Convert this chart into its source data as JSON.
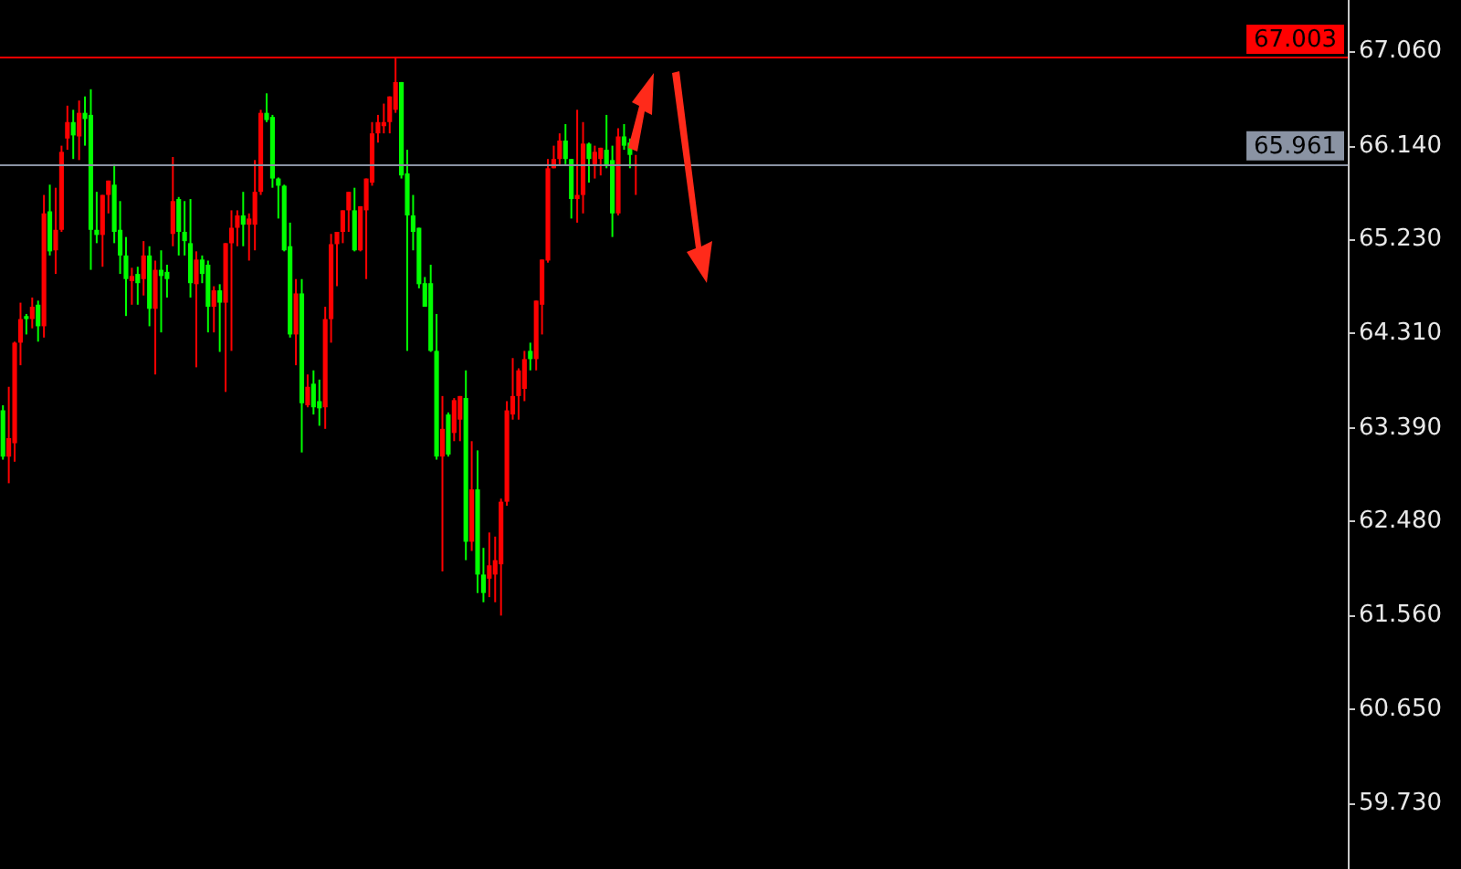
{
  "chart_data": {
    "type": "candlestick",
    "categories": [
      null,
      null,
      null,
      null,
      null,
      null,
      null,
      null,
      null,
      null,
      null,
      null,
      null,
      null,
      null,
      null,
      null,
      null,
      null,
      null,
      null,
      null,
      null,
      null,
      null,
      null,
      null,
      null,
      null,
      null,
      null,
      null,
      null,
      null,
      null,
      null,
      null,
      null,
      null,
      null,
      null,
      null,
      null,
      null,
      null,
      null,
      null,
      null,
      null,
      null,
      null,
      null,
      null,
      null,
      null,
      null,
      null,
      null,
      null,
      null,
      null,
      null,
      null,
      null,
      null,
      null,
      null,
      null,
      null,
      null,
      null,
      null,
      null,
      null,
      null,
      null,
      null,
      null,
      null,
      null,
      null,
      null,
      null,
      null,
      null,
      null,
      null,
      null,
      null,
      null,
      null,
      null,
      null,
      null,
      null,
      null,
      null,
      null,
      null,
      null,
      null,
      null,
      null,
      null,
      null,
      null,
      null,
      null,
      null,
      null,
      null,
      null,
      null,
      null,
      null,
      null,
      null,
      null,
      null,
      null,
      null,
      null,
      null,
      null,
      null,
      null,
      null,
      null,
      null,
      null,
      null,
      null,
      null,
      null,
      null,
      null,
      null,
      null,
      null,
      null,
      null,
      null,
      null,
      null,
      null,
      null,
      null,
      null,
      null,
      null,
      null,
      null,
      null,
      null,
      null,
      null,
      null,
      null,
      null,
      null,
      null,
      null,
      null,
      null,
      null,
      null,
      null,
      null,
      null,
      null,
      null,
      null,
      null,
      null,
      null,
      null,
      null,
      null,
      null,
      null,
      null,
      null,
      null,
      null,
      null,
      null,
      null,
      null,
      null,
      null,
      null,
      null,
      null,
      null,
      null,
      null,
      null,
      null,
      null,
      null,
      null,
      null,
      null,
      null,
      null,
      null,
      null,
      null,
      null,
      null,
      null,
      null,
      null,
      null,
      null,
      null,
      null,
      null,
      null,
      null,
      null,
      null,
      null,
      null,
      null,
      null,
      null,
      null,
      null,
      null
    ],
    "ohlc": [
      [
        63.56,
        63.61,
        63.08,
        63.11
      ],
      [
        63.11,
        63.79,
        62.85,
        63.29
      ],
      [
        63.24,
        64.23,
        63.06,
        64.22
      ],
      [
        64.22,
        64.61,
        64.0,
        64.45
      ],
      [
        64.48,
        64.5,
        64.3,
        64.45
      ],
      [
        64.45,
        64.66,
        64.36,
        64.57
      ],
      [
        64.59,
        64.63,
        64.23,
        64.38
      ],
      [
        64.38,
        65.66,
        64.27,
        65.48
      ],
      [
        65.5,
        65.76,
        65.07,
        65.11
      ],
      [
        65.12,
        65.73,
        64.89,
        65.32
      ],
      [
        65.32,
        66.14,
        65.3,
        66.08
      ],
      [
        66.21,
        66.53,
        66.1,
        66.37
      ],
      [
        66.37,
        66.49,
        66.01,
        66.24
      ],
      [
        66.23,
        66.58,
        66.0,
        66.46
      ],
      [
        66.46,
        66.62,
        66.14,
        66.4
      ],
      [
        66.44,
        66.69,
        64.93,
        65.32
      ],
      [
        65.32,
        65.69,
        65.19,
        65.27
      ],
      [
        65.27,
        65.66,
        64.96,
        65.66
      ],
      [
        65.66,
        65.8,
        65.48,
        65.8
      ],
      [
        65.76,
        65.96,
        65.19,
        65.3
      ],
      [
        65.32,
        65.6,
        64.89,
        65.07
      ],
      [
        65.07,
        65.25,
        64.48,
        64.84
      ],
      [
        64.82,
        64.95,
        64.59,
        64.87
      ],
      [
        64.89,
        64.96,
        64.59,
        64.8
      ],
      [
        64.84,
        65.21,
        64.68,
        65.07
      ],
      [
        65.07,
        65.16,
        64.38,
        64.55
      ],
      [
        64.55,
        65.02,
        63.91,
        64.93
      ],
      [
        64.93,
        65.12,
        64.32,
        64.87
      ],
      [
        64.91,
        64.98,
        64.66,
        64.84
      ],
      [
        65.28,
        66.03,
        65.16,
        65.6
      ],
      [
        65.62,
        65.64,
        65.07,
        65.3
      ],
      [
        65.3,
        65.6,
        65.07,
        65.21
      ],
      [
        65.19,
        65.62,
        64.66,
        64.8
      ],
      [
        64.79,
        65.11,
        63.98,
        65.03
      ],
      [
        65.03,
        65.07,
        64.8,
        64.89
      ],
      [
        64.98,
        65.02,
        64.32,
        64.57
      ],
      [
        64.57,
        64.77,
        64.32,
        64.73
      ],
      [
        64.73,
        64.79,
        64.13,
        64.61
      ],
      [
        64.61,
        65.19,
        63.74,
        65.19
      ],
      [
        65.19,
        65.51,
        64.14,
        65.34
      ],
      [
        65.34,
        65.51,
        65.16,
        65.46
      ],
      [
        65.46,
        65.69,
        65.16,
        65.37
      ],
      [
        65.37,
        65.48,
        65.02,
        65.43
      ],
      [
        65.37,
        66.0,
        65.12,
        65.69
      ],
      [
        65.69,
        66.49,
        65.66,
        66.46
      ],
      [
        66.46,
        66.65,
        66.37,
        66.39
      ],
      [
        66.42,
        66.44,
        65.73,
        65.82
      ],
      [
        65.82,
        65.83,
        65.43,
        65.75
      ],
      [
        65.75,
        65.76,
        65.11,
        65.12
      ],
      [
        65.16,
        65.39,
        64.27,
        64.3
      ],
      [
        64.3,
        64.84,
        64.0,
        64.7
      ],
      [
        64.7,
        64.84,
        63.15,
        63.63
      ],
      [
        63.61,
        63.91,
        63.59,
        63.79
      ],
      [
        63.82,
        63.95,
        63.52,
        63.59
      ],
      [
        63.65,
        63.86,
        63.41,
        63.58
      ],
      [
        63.59,
        64.57,
        63.38,
        64.45
      ],
      [
        64.45,
        65.28,
        64.22,
        65.18
      ],
      [
        65.18,
        65.3,
        64.77,
        65.3
      ],
      [
        65.3,
        65.51,
        65.19,
        65.51
      ],
      [
        65.51,
        65.69,
        65.3,
        65.69
      ],
      [
        65.51,
        65.73,
        65.11,
        65.12
      ],
      [
        65.12,
        65.55,
        65.11,
        65.55
      ],
      [
        65.51,
        65.82,
        64.84,
        65.82
      ],
      [
        65.78,
        66.37,
        65.75,
        66.26
      ],
      [
        66.26,
        66.44,
        66.17,
        66.37
      ],
      [
        66.33,
        66.55,
        66.26,
        66.37
      ],
      [
        66.37,
        66.62,
        66.26,
        66.62
      ],
      [
        66.49,
        67.0,
        66.46,
        66.76
      ],
      [
        66.76,
        66.76,
        65.82,
        65.85
      ],
      [
        65.87,
        66.1,
        64.14,
        65.46
      ],
      [
        65.46,
        65.66,
        65.12,
        65.3
      ],
      [
        65.34,
        65.34,
        64.75,
        64.79
      ],
      [
        64.8,
        64.86,
        64.57,
        64.57
      ],
      [
        64.8,
        64.98,
        64.13,
        64.14
      ],
      [
        64.14,
        64.5,
        63.08,
        63.11
      ],
      [
        63.11,
        63.7,
        61.99,
        63.38
      ],
      [
        63.52,
        63.54,
        63.11,
        63.13
      ],
      [
        63.34,
        63.68,
        63.26,
        63.66
      ],
      [
        63.47,
        63.7,
        63.26,
        63.7
      ],
      [
        63.68,
        63.95,
        62.1,
        62.28
      ],
      [
        62.28,
        63.26,
        62.19,
        62.79
      ],
      [
        62.79,
        63.17,
        61.78,
        61.96
      ],
      [
        61.96,
        62.22,
        61.69,
        61.78
      ],
      [
        61.92,
        62.37,
        61.74,
        62.05
      ],
      [
        61.96,
        62.33,
        61.69,
        62.1
      ],
      [
        62.06,
        62.7,
        61.56,
        62.67
      ],
      [
        62.67,
        63.65,
        62.63,
        63.56
      ],
      [
        63.52,
        64.07,
        63.47,
        63.7
      ],
      [
        63.7,
        63.97,
        63.47,
        63.95
      ],
      [
        63.77,
        64.14,
        63.65,
        64.06
      ],
      [
        64.14,
        64.22,
        63.95,
        64.06
      ],
      [
        64.06,
        64.63,
        63.95,
        64.63
      ],
      [
        64.59,
        65.03,
        64.3,
        65.03
      ],
      [
        65.02,
        66.01,
        65.0,
        65.92
      ],
      [
        65.92,
        66.14,
        65.92,
        66.01
      ],
      [
        66.01,
        66.26,
        65.96,
        66.19
      ],
      [
        66.19,
        66.35,
        65.96,
        66.01
      ],
      [
        66.01,
        66.01,
        65.43,
        65.62
      ],
      [
        65.62,
        66.49,
        65.39,
        65.66
      ],
      [
        65.66,
        66.37,
        65.48,
        66.16
      ],
      [
        66.16,
        66.17,
        65.78,
        66.01
      ],
      [
        65.96,
        66.14,
        65.82,
        66.08
      ],
      [
        66.01,
        66.12,
        65.85,
        66.12
      ],
      [
        66.1,
        66.44,
        65.92,
        65.94
      ],
      [
        66.0,
        66.14,
        65.25,
        65.48
      ],
      [
        65.48,
        66.31,
        65.46,
        66.23
      ],
      [
        66.23,
        66.35,
        66.1,
        66.14
      ],
      [
        66.17,
        66.21,
        65.92,
        66.05
      ],
      [
        65.94,
        66.05,
        65.66,
        65.96
      ],
      null,
      null,
      null,
      null,
      null,
      null,
      null,
      null,
      null,
      null,
      null,
      null,
      null,
      null,
      null,
      null,
      null,
      null,
      null,
      null,
      null,
      null,
      null,
      null,
      null,
      null,
      null,
      null,
      null,
      null,
      null,
      null,
      null,
      null,
      null,
      null,
      null,
      null,
      null,
      null,
      null,
      null,
      null,
      null,
      null,
      null,
      null,
      null,
      null,
      null,
      null,
      null,
      null,
      null,
      null,
      null,
      null,
      null,
      null,
      null,
      null,
      null,
      null,
      null,
      null,
      null,
      null,
      null,
      null,
      null,
      null,
      null,
      null,
      null,
      null,
      null,
      null,
      null,
      null,
      null,
      null,
      null,
      null,
      null,
      null,
      null,
      null,
      null,
      null,
      null,
      null,
      null,
      null,
      null,
      null,
      null,
      null,
      null,
      null,
      null,
      null,
      null,
      null,
      null,
      null,
      null,
      null,
      null,
      null,
      null,
      null,
      null,
      null,
      null,
      null,
      null,
      null,
      null,
      null,
      null,
      null
    ],
    "colors": [
      "#00ff00",
      "#ff0000",
      "#ff0000",
      "#ff0000",
      "#00ff00",
      "#ff0000",
      "#00ff00",
      "#ff0000",
      "#00ff00",
      "#ff0000",
      "#ff0000",
      "#ff0000",
      "#00ff00",
      "#ff0000",
      "#00ff00",
      "#00ff00",
      "#00ff00",
      "#ff0000",
      "#ff0000",
      "#00ff00",
      "#00ff00",
      "#00ff00",
      "#ff0000",
      "#00ff00",
      "#ff0000",
      "#00ff00",
      "#ff0000",
      "#00ff00",
      "#00ff00",
      "#ff0000",
      "#00ff00",
      "#00ff00",
      "#00ff00",
      "#ff0000",
      "#00ff00",
      "#00ff00",
      "#ff0000",
      "#00ff00",
      "#ff0000",
      "#ff0000",
      "#ff0000",
      "#00ff00",
      "#ff0000",
      "#ff0000",
      "#ff0000",
      "#00ff00",
      "#00ff00",
      "#00ff00",
      "#00ff00",
      "#00ff00",
      "#ff0000",
      "#00ff00",
      "#ff0000",
      "#00ff00",
      "#00ff00",
      "#ff0000",
      "#ff0000",
      "#ff0000",
      "#ff0000",
      "#ff0000",
      "#00ff00",
      "#ff0000",
      "#ff0000",
      "#ff0000",
      "#ff0000",
      "#ff0000",
      "#ff0000",
      "#ff0000",
      "#00ff00",
      "#00ff00",
      "#00ff00",
      "#00ff00",
      "#00ff00",
      "#00ff00",
      "#00ff00",
      "#ff0000",
      "#00ff00",
      "#ff0000",
      "#ff0000",
      "#00ff00",
      "#ff0000",
      "#00ff00",
      "#00ff00",
      "#ff0000",
      "#ff0000",
      "#ff0000",
      "#ff0000",
      "#ff0000",
      "#ff0000",
      "#ff0000",
      "#00ff00",
      "#ff0000",
      "#ff0000",
      "#ff0000",
      "#ff0000",
      "#ff0000",
      "#00ff00",
      "#00ff00",
      "#ff0000",
      "#ff0000",
      "#00ff00",
      "#ff0000",
      "#ff0000",
      "#00ff00",
      "#00ff00",
      "#ff0000",
      "#00ff00",
      "#00ff00",
      "#ff0000",
      null,
      null,
      null,
      null,
      null,
      null,
      null,
      null,
      null,
      null,
      null,
      null,
      null,
      null,
      null,
      null,
      null,
      null,
      null,
      null,
      null,
      null,
      null,
      null,
      null,
      null,
      null,
      null,
      null,
      null,
      null,
      null,
      null,
      null,
      null,
      null,
      null,
      null,
      null,
      null,
      null,
      null,
      null,
      null,
      null,
      null,
      null,
      null,
      null,
      null,
      null,
      null,
      null,
      null,
      null,
      null,
      null,
      null,
      null,
      null,
      null,
      null,
      null,
      null,
      null,
      null,
      null,
      null,
      null,
      null,
      null,
      null,
      null,
      null,
      null,
      null,
      null,
      null,
      null,
      null,
      null,
      null,
      null,
      null,
      null,
      null,
      null,
      null,
      null,
      null,
      null,
      null,
      null,
      null,
      null,
      null,
      null,
      null,
      null,
      null,
      null,
      null,
      null,
      null,
      null,
      null,
      null,
      null,
      null,
      null,
      null,
      null,
      null,
      null,
      null,
      null,
      null,
      null,
      null,
      null,
      null
    ],
    "ylim": [
      59.09,
      67.56
    ],
    "yticks": [
      {
        "value": 67.06,
        "label": "67.060"
      },
      {
        "value": 66.14,
        "label": "66.140"
      },
      {
        "value": 65.23,
        "label": "65.230"
      },
      {
        "value": 64.31,
        "label": "64.310"
      },
      {
        "value": 63.39,
        "label": "63.390"
      },
      {
        "value": 62.48,
        "label": "62.480"
      },
      {
        "value": 61.56,
        "label": "61.560"
      },
      {
        "value": 60.65,
        "label": "60.650"
      },
      {
        "value": 59.73,
        "label": "59.730"
      }
    ],
    "ref_lines": [
      {
        "axis": "y",
        "value": 67.003,
        "label": "67.003",
        "color": "#ff0000"
      },
      {
        "axis": "y",
        "value": 65.961,
        "label": "65.961",
        "color": "#8a93a3"
      }
    ],
    "grid": false,
    "tick_labels": "y"
  }
}
